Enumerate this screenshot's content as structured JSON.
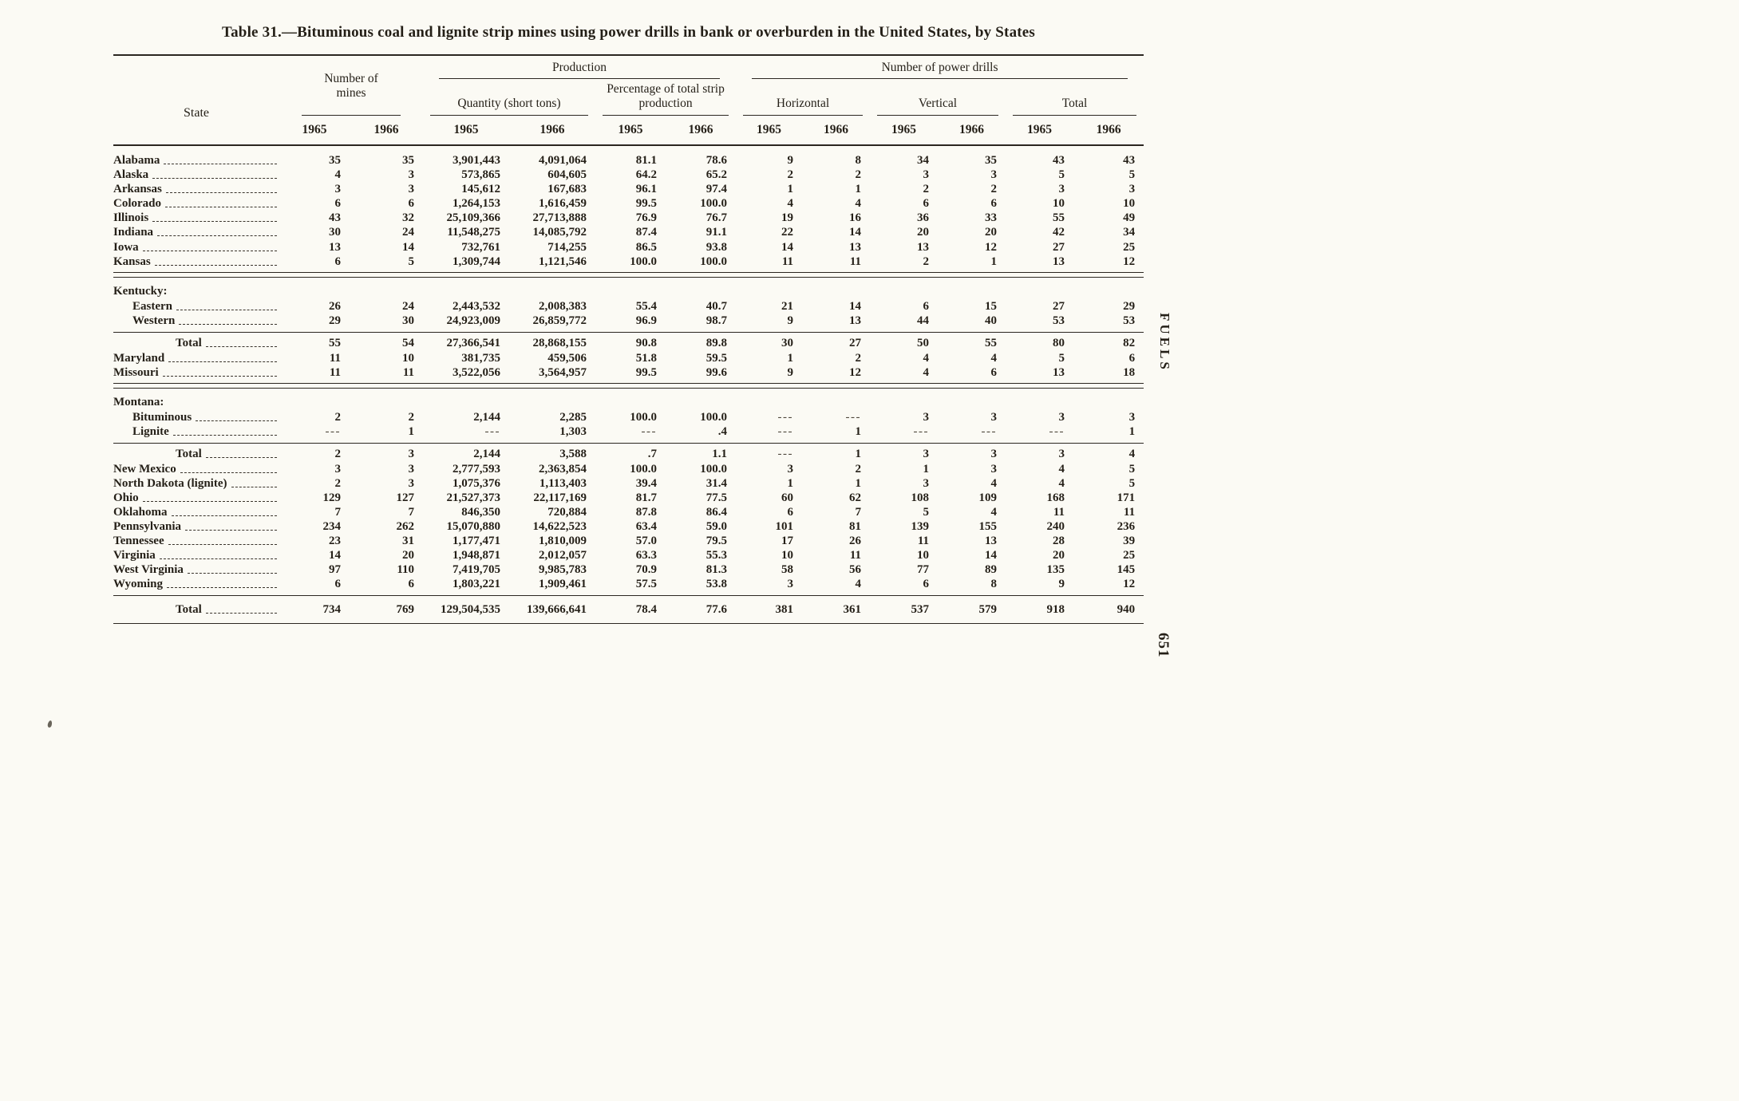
{
  "page": {
    "title": "Table 31.—Bituminous coal and lignite strip mines using power drills in bank or overburden in the United States, by States",
    "side_label": "FUELS",
    "page_number": "651"
  },
  "table": {
    "col_headers": {
      "state": "State",
      "number_of_mines": "Number of mines",
      "production": "Production",
      "quantity": "Quantity (short tons)",
      "percentage": "Percentage of total strip production",
      "power_drills": "Number of power drills",
      "horizontal": "Horizontal",
      "vertical": "Vertical",
      "total": "Total",
      "year_1965": "1965",
      "year_1966": "1966"
    },
    "rows": [
      {
        "type": "state",
        "label": "Alabama",
        "values": [
          "35",
          "35",
          "3,901,443",
          "4,091,064",
          "81.1",
          "78.6",
          "9",
          "8",
          "34",
          "35",
          "43",
          "43"
        ]
      },
      {
        "type": "state",
        "label": "Alaska",
        "values": [
          "4",
          "3",
          "573,865",
          "604,605",
          "64.2",
          "65.2",
          "2",
          "2",
          "3",
          "3",
          "5",
          "5"
        ]
      },
      {
        "type": "state",
        "label": "Arkansas",
        "values": [
          "3",
          "3",
          "145,612",
          "167,683",
          "96.1",
          "97.4",
          "1",
          "1",
          "2",
          "2",
          "3",
          "3"
        ]
      },
      {
        "type": "state",
        "label": "Colorado",
        "values": [
          "6",
          "6",
          "1,264,153",
          "1,616,459",
          "99.5",
          "100.0",
          "4",
          "4",
          "6",
          "6",
          "10",
          "10"
        ]
      },
      {
        "type": "state",
        "label": "Illinois",
        "values": [
          "43",
          "32",
          "25,109,366",
          "27,713,888",
          "76.9",
          "76.7",
          "19",
          "16",
          "36",
          "33",
          "55",
          "49"
        ]
      },
      {
        "type": "state",
        "label": "Indiana",
        "values": [
          "30",
          "24",
          "11,548,275",
          "14,085,792",
          "87.4",
          "91.1",
          "22",
          "14",
          "20",
          "20",
          "42",
          "34"
        ]
      },
      {
        "type": "state",
        "label": "Iowa",
        "values": [
          "13",
          "14",
          "732,761",
          "714,255",
          "86.5",
          "93.8",
          "14",
          "13",
          "13",
          "12",
          "27",
          "25"
        ]
      },
      {
        "type": "state",
        "label": "Kansas",
        "values": [
          "6",
          "5",
          "1,309,744",
          "1,121,546",
          "100.0",
          "100.0",
          "11",
          "11",
          "2",
          "1",
          "13",
          "12"
        ]
      },
      {
        "type": "rule",
        "style": "double"
      },
      {
        "type": "group",
        "label": "Kentucky:"
      },
      {
        "type": "sub",
        "label": "Eastern",
        "values": [
          "26",
          "24",
          "2,443,532",
          "2,008,383",
          "55.4",
          "40.7",
          "21",
          "14",
          "6",
          "15",
          "27",
          "29"
        ]
      },
      {
        "type": "sub",
        "label": "Western",
        "values": [
          "29",
          "30",
          "24,923,009",
          "26,859,772",
          "96.9",
          "98.7",
          "9",
          "13",
          "44",
          "40",
          "53",
          "53"
        ]
      },
      {
        "type": "rule",
        "style": "single"
      },
      {
        "type": "total",
        "label": "Total",
        "values": [
          "55",
          "54",
          "27,366,541",
          "28,868,155",
          "90.8",
          "89.8",
          "30",
          "27",
          "50",
          "55",
          "80",
          "82"
        ]
      },
      {
        "type": "state",
        "label": "Maryland",
        "values": [
          "11",
          "10",
          "381,735",
          "459,506",
          "51.8",
          "59.5",
          "1",
          "2",
          "4",
          "4",
          "5",
          "6"
        ]
      },
      {
        "type": "state",
        "label": "Missouri",
        "values": [
          "11",
          "11",
          "3,522,056",
          "3,564,957",
          "99.5",
          "99.6",
          "9",
          "12",
          "4",
          "6",
          "13",
          "18"
        ]
      },
      {
        "type": "rule",
        "style": "double"
      },
      {
        "type": "group",
        "label": "Montana:"
      },
      {
        "type": "sub",
        "label": "Bituminous",
        "values": [
          "2",
          "2",
          "2,144",
          "2,285",
          "100.0",
          "100.0",
          "---",
          "---",
          "3",
          "3",
          "3",
          "3"
        ]
      },
      {
        "type": "sub",
        "label": "Lignite",
        "values": [
          "---",
          "1",
          "---",
          "1,303",
          "---",
          ".4",
          "---",
          "1",
          "---",
          "---",
          "---",
          "1"
        ]
      },
      {
        "type": "rule",
        "style": "single"
      },
      {
        "type": "total",
        "label": "Total",
        "values": [
          "2",
          "3",
          "2,144",
          "3,588",
          ".7",
          "1.1",
          "---",
          "1",
          "3",
          "3",
          "3",
          "4"
        ]
      },
      {
        "type": "state",
        "label": "New Mexico",
        "values": [
          "3",
          "3",
          "2,777,593",
          "2,363,854",
          "100.0",
          "100.0",
          "3",
          "2",
          "1",
          "3",
          "4",
          "5"
        ]
      },
      {
        "type": "state",
        "label": "North Dakota (lignite)",
        "values": [
          "2",
          "3",
          "1,075,376",
          "1,113,403",
          "39.4",
          "31.4",
          "1",
          "1",
          "3",
          "4",
          "4",
          "5"
        ]
      },
      {
        "type": "state",
        "label": "Ohio",
        "values": [
          "129",
          "127",
          "21,527,373",
          "22,117,169",
          "81.7",
          "77.5",
          "60",
          "62",
          "108",
          "109",
          "168",
          "171"
        ]
      },
      {
        "type": "state",
        "label": "Oklahoma",
        "values": [
          "7",
          "7",
          "846,350",
          "720,884",
          "87.8",
          "86.4",
          "6",
          "7",
          "5",
          "4",
          "11",
          "11"
        ]
      },
      {
        "type": "state",
        "label": "Pennsylvania",
        "values": [
          "234",
          "262",
          "15,070,880",
          "14,622,523",
          "63.4",
          "59.0",
          "101",
          "81",
          "139",
          "155",
          "240",
          "236"
        ]
      },
      {
        "type": "state",
        "label": "Tennessee",
        "values": [
          "23",
          "31",
          "1,177,471",
          "1,810,009",
          "57.0",
          "79.5",
          "17",
          "26",
          "11",
          "13",
          "28",
          "39"
        ]
      },
      {
        "type": "state",
        "label": "Virginia",
        "values": [
          "14",
          "20",
          "1,948,871",
          "2,012,057",
          "63.3",
          "55.3",
          "10",
          "11",
          "10",
          "14",
          "20",
          "25"
        ]
      },
      {
        "type": "state",
        "label": "West Virginia",
        "values": [
          "97",
          "110",
          "7,419,705",
          "9,985,783",
          "70.9",
          "81.3",
          "58",
          "56",
          "77",
          "89",
          "135",
          "145"
        ]
      },
      {
        "type": "state",
        "label": "Wyoming",
        "values": [
          "6",
          "6",
          "1,803,221",
          "1,909,461",
          "57.5",
          "53.8",
          "3",
          "4",
          "6",
          "8",
          "9",
          "12"
        ]
      },
      {
        "type": "rule",
        "style": "single"
      },
      {
        "type": "grand",
        "label": "Total",
        "values": [
          "734",
          "769",
          "129,504,535",
          "139,666,641",
          "78.4",
          "77.6",
          "381",
          "361",
          "537",
          "579",
          "918",
          "940"
        ]
      },
      {
        "type": "rule",
        "style": "single"
      }
    ]
  }
}
